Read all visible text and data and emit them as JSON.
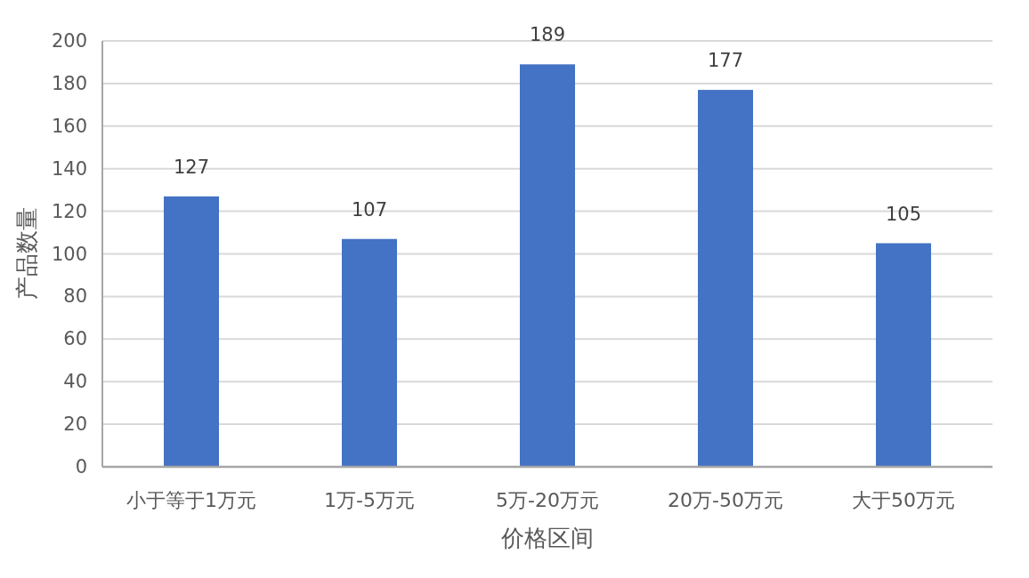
{
  "chart_data": {
    "type": "bar",
    "xlabel": "价格区间",
    "ylabel": "产品数量",
    "categories": [
      "小于等于1万元",
      "1万-5万元",
      "5万-20万元",
      "20万-50万元",
      "大于50万元"
    ],
    "values": [
      127,
      107,
      189,
      177,
      105
    ],
    "color": "#4472c4",
    "ylim": [
      0,
      200
    ],
    "yticks": [
      0,
      20,
      40,
      60,
      80,
      100,
      120,
      140,
      160,
      180,
      200
    ],
    "grid": "y",
    "data_labels": true
  }
}
